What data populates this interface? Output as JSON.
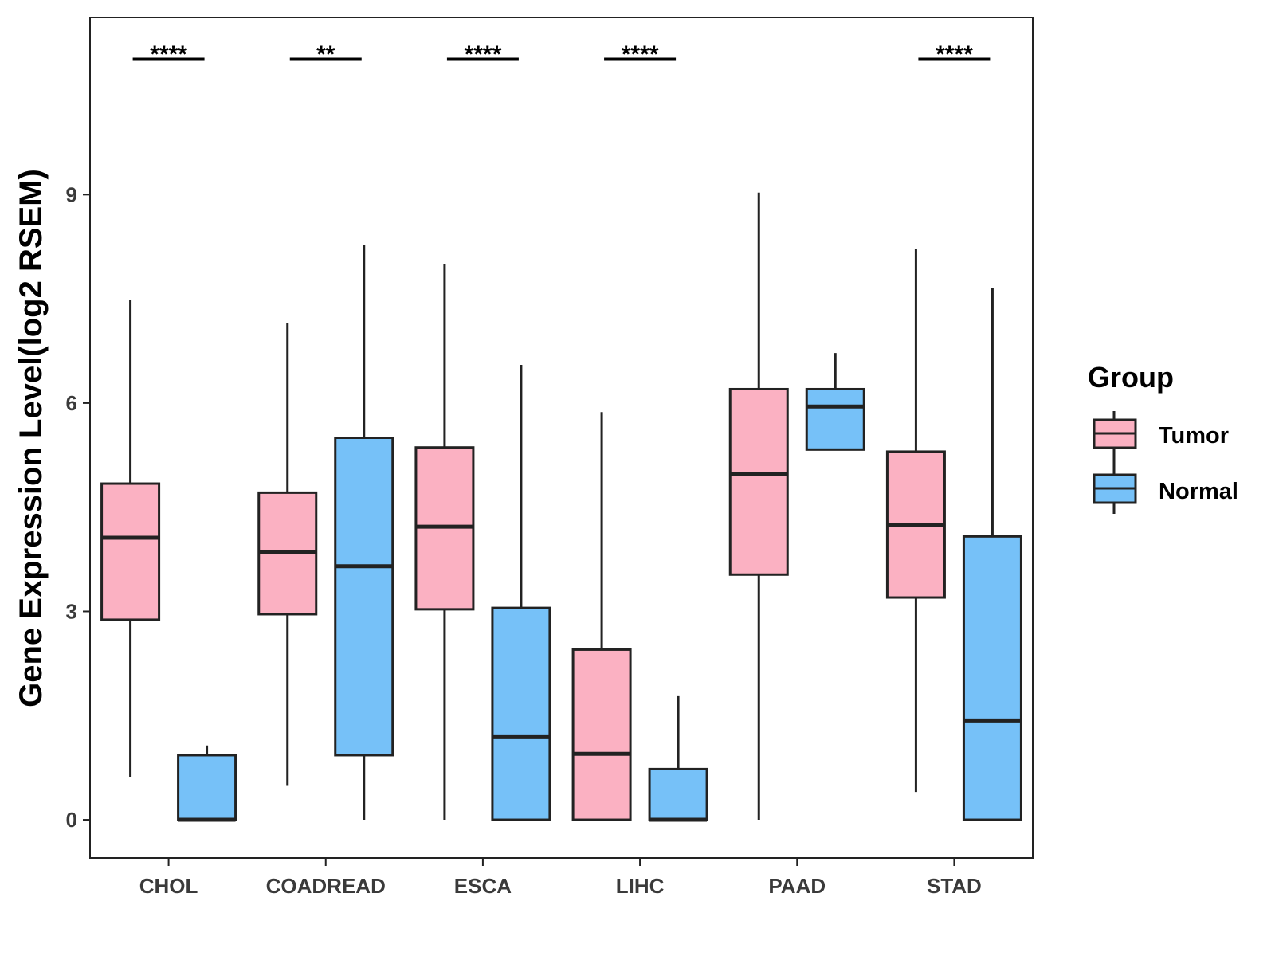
{
  "chart_data": {
    "type": "boxplot",
    "title": "",
    "xlabel": "",
    "ylabel": "Gene Expression Level(log2 RSEM)",
    "ylim": [
      -0.55,
      11.55
    ],
    "yticks": [
      0,
      3,
      6,
      9
    ],
    "grid": false,
    "legend_position": "right",
    "legend_title": "Group",
    "categories": [
      "CHOL",
      "COADREAD",
      "ESCA",
      "LIHC",
      "PAAD",
      "STAD"
    ],
    "series": [
      {
        "name": "Tumor",
        "color": "#FBB1C2",
        "boxes": [
          {
            "whisker_low": 0.62,
            "q1": 2.88,
            "median": 4.06,
            "q3": 4.84,
            "whisker_high": 7.48
          },
          {
            "whisker_low": 0.5,
            "q1": 2.96,
            "median": 3.86,
            "q3": 4.71,
            "whisker_high": 7.15
          },
          {
            "whisker_low": 0.0,
            "q1": 3.03,
            "median": 4.22,
            "q3": 5.36,
            "whisker_high": 8.0
          },
          {
            "whisker_low": 0.0,
            "q1": 0.0,
            "median": 0.95,
            "q3": 2.45,
            "whisker_high": 5.87
          },
          {
            "whisker_low": 0.0,
            "q1": 3.53,
            "median": 4.98,
            "q3": 6.2,
            "whisker_high": 9.03
          },
          {
            "whisker_low": 0.4,
            "q1": 3.2,
            "median": 4.25,
            "q3": 5.3,
            "whisker_high": 8.22
          }
        ]
      },
      {
        "name": "Normal",
        "color": "#76C1F8",
        "boxes": [
          {
            "whisker_low": 0.0,
            "q1": 0.0,
            "median": 0.0,
            "q3": 0.93,
            "whisker_high": 1.07
          },
          {
            "whisker_low": 0.0,
            "q1": 0.93,
            "median": 3.65,
            "q3": 5.5,
            "whisker_high": 8.28
          },
          {
            "whisker_low": 0.0,
            "q1": 0.0,
            "median": 1.2,
            "q3": 3.05,
            "whisker_high": 6.55
          },
          {
            "whisker_low": 0.0,
            "q1": 0.0,
            "median": 0.0,
            "q3": 0.73,
            "whisker_high": 1.78
          },
          {
            "whisker_low": 5.33,
            "q1": 5.33,
            "median": 5.95,
            "q3": 6.2,
            "whisker_high": 6.72
          },
          {
            "whisker_low": 0.0,
            "q1": 0.0,
            "median": 1.43,
            "q3": 4.08,
            "whisker_high": 7.65
          }
        ]
      }
    ],
    "significance": [
      "****",
      "**",
      "****",
      "****",
      "",
      "****"
    ]
  }
}
